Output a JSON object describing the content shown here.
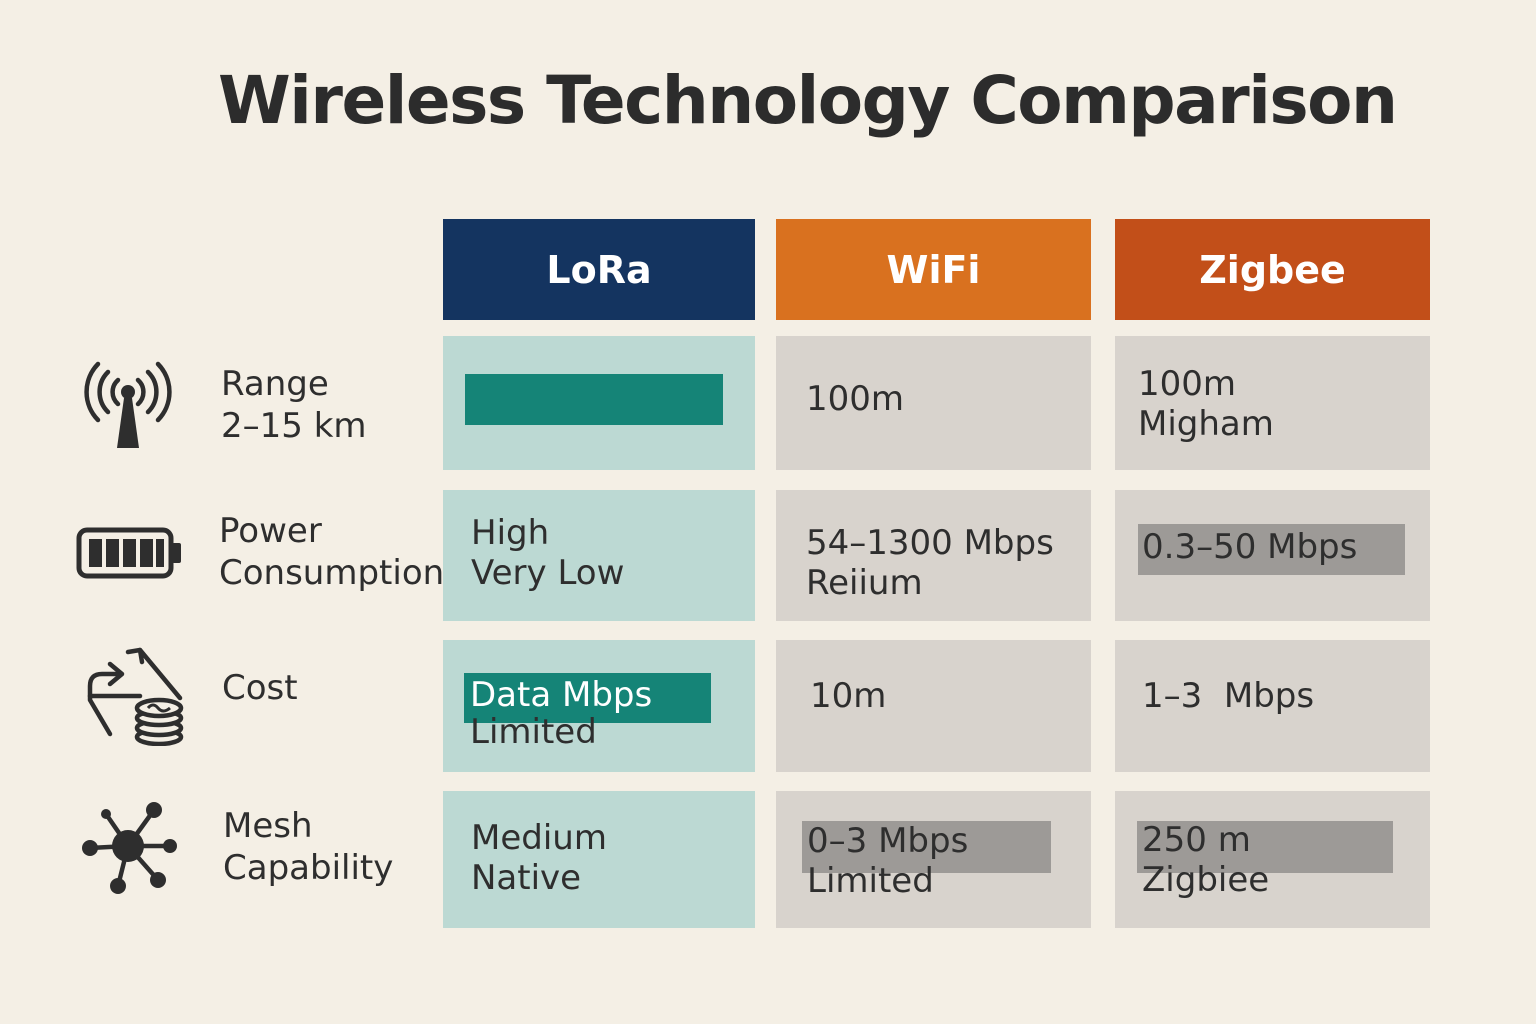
{
  "title": "Wireless Technology Comparison",
  "colors": {
    "background": "#f4efe5",
    "lora_header": "#143460",
    "wifi_header": "#d9711f",
    "zigbee_header": "#c24f19",
    "lora_cell": "#bcd9d3",
    "other_cell": "#d8d3cd",
    "teal_bar": "#158477",
    "gray_bar": "#9d9a97"
  },
  "columns": [
    "LoRa",
    "WiFi",
    "Zigbee"
  ],
  "rows": [
    {
      "icon": "antenna-icon",
      "label_line1": "Range",
      "label_line2": "2–15 km",
      "lora": {
        "line1": "",
        "line2": ""
      },
      "wifi": {
        "line1": "100m",
        "line2": ""
      },
      "zigbee": {
        "line1": "100m",
        "line2": "Migham"
      }
    },
    {
      "icon": "battery-icon",
      "label_line1": "Power",
      "label_line2": "Consumption",
      "lora": {
        "line1": "High",
        "line2": "Very Low"
      },
      "wifi": {
        "line1": "54–1300 Mbps",
        "line2": "Reiium"
      },
      "zigbee": {
        "line1": "0.3–50 Mbps",
        "line2": ""
      }
    },
    {
      "icon": "cost-coins-icon",
      "label_line1": "Cost",
      "label_line2": "",
      "lora": {
        "line1": "Data Mbps",
        "line2": "Limited"
      },
      "wifi": {
        "line1": "10m",
        "line2": ""
      },
      "zigbee": {
        "line1": "1–3  Mbps",
        "line2": ""
      }
    },
    {
      "icon": "mesh-network-icon",
      "label_line1": "Mesh",
      "label_line2": "Capability",
      "lora": {
        "line1": "Medium",
        "line2": "Native"
      },
      "wifi": {
        "line1": "0–3 Mbps",
        "line2": "Limited"
      },
      "zigbee": {
        "line1": "250 m",
        "line2": "Zigbiee"
      }
    }
  ]
}
